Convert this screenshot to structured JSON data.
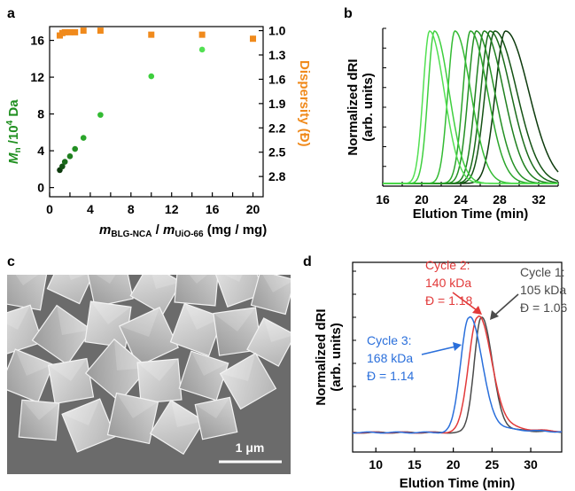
{
  "panels": {
    "a": "a",
    "b": "b",
    "c": "c",
    "d": "d"
  },
  "colors": {
    "green_series": [
      "#0d3a0d",
      "#145214",
      "#1a6b1a",
      "#1f7f1f",
      "#238f23",
      "#2aa52a",
      "#33bb33",
      "#3ecf3e",
      "#52e052"
    ],
    "orange": "#f08a1c",
    "cycle1": "#4a4a4a",
    "cycle2": "#e23a3a",
    "cycle3": "#2a6fdb"
  },
  "chart_data": [
    {
      "panel": "a",
      "type": "scatter",
      "xlabel_main": "m",
      "xlabel_sub1": "BLG-NCA",
      "xlabel_mid": " / ",
      "xlabel_main2": "m",
      "xlabel_sub2": "UiO-66",
      "xlabel_unit": " (mg / mg)",
      "ylabel_left_main": "M",
      "ylabel_left_sub": "n",
      "ylabel_left_rest": " /10",
      "ylabel_left_sup": "4",
      "ylabel_left_unit": " Da",
      "ylabel_right": "Dispersity (Đ)",
      "xlim": [
        0,
        21
      ],
      "xticks": [
        0,
        2,
        4,
        6,
        8,
        10,
        12,
        14,
        16,
        18,
        20
      ],
      "xtick_labels": [
        "0",
        "",
        "4",
        "",
        "8",
        "",
        "12",
        "",
        "16",
        "",
        "20"
      ],
      "ylim_left": [
        -1,
        17.5
      ],
      "yticks_left": [
        0,
        4,
        8,
        12,
        16
      ],
      "ylim_right": [
        3.05,
        0.95
      ],
      "yticks_right": [
        1.0,
        1.3,
        1.6,
        1.9,
        2.2,
        2.5,
        2.8
      ],
      "series": [
        {
          "axis": "left",
          "x": [
            1.0,
            1.25,
            1.5,
            2.0,
            2.5,
            3.33,
            5.0,
            10.0,
            15.0,
            20.0
          ],
          "values": [
            1.9,
            2.3,
            2.8,
            3.4,
            4.2,
            5.4,
            7.9,
            12.1,
            15.0,
            16.2
          ]
        },
        {
          "axis": "right",
          "x": [
            1.0,
            1.25,
            1.5,
            2.0,
            2.5,
            3.33,
            5.0,
            10.0,
            15.0,
            20.0
          ],
          "values": [
            1.06,
            1.03,
            1.02,
            1.02,
            1.02,
            1.0,
            1.0,
            1.05,
            1.05,
            1.1
          ]
        }
      ]
    },
    {
      "panel": "b",
      "type": "line",
      "xlabel": "Elution Time (min)",
      "ylabel_line1": "Normalized dRI",
      "ylabel_line2": "(arb. units)",
      "xlim": [
        16,
        34
      ],
      "xticks": [
        16,
        18,
        20,
        22,
        24,
        26,
        28,
        30,
        32,
        34
      ],
      "xtick_labels": [
        "16",
        "",
        "20",
        "",
        "24",
        "",
        "28",
        "",
        "32",
        ""
      ],
      "series": [
        {
          "peak": 28.6,
          "width": 1.9
        },
        {
          "peak": 27.5,
          "width": 1.8
        },
        {
          "peak": 27.0,
          "width": 1.7
        },
        {
          "peak": 26.4,
          "width": 1.6
        },
        {
          "peak": 25.6,
          "width": 1.5
        },
        {
          "peak": 25.0,
          "width": 1.4
        },
        {
          "peak": 23.4,
          "width": 1.3
        },
        {
          "peak": 21.3,
          "width": 1.2
        },
        {
          "peak": 20.8,
          "width": 1.2
        }
      ]
    },
    {
      "panel": "d",
      "type": "line",
      "xlabel": "Elution Time (min)",
      "ylabel_line1": "Normalized dRI",
      "ylabel_line2": "(arb. units)",
      "xlim": [
        7,
        34
      ],
      "xticks": [
        10,
        15,
        20,
        25,
        30
      ],
      "series": [
        {
          "name": "Cycle 1",
          "peak": 23.6,
          "width": 1.2,
          "tail": 0.06
        },
        {
          "name": "Cycle 2",
          "peak": 23.1,
          "width": 1.5,
          "tail": 0.12
        },
        {
          "name": "Cycle 3",
          "peak": 22.0,
          "width": 1.4,
          "tail": 0.1
        }
      ],
      "annotations": [
        {
          "l1": "Cycle 1:",
          "l2": "105 kDa",
          "l3": "Đ = 1.06"
        },
        {
          "l1": "Cycle 2:",
          "l2": "140 kDa",
          "l3": "Đ = 1.18"
        },
        {
          "l1": "Cycle 3:",
          "l2": "168 kDa",
          "l3": "Đ = 1.14"
        }
      ]
    }
  ],
  "sem": {
    "scale_bar_label": "1 μm"
  }
}
